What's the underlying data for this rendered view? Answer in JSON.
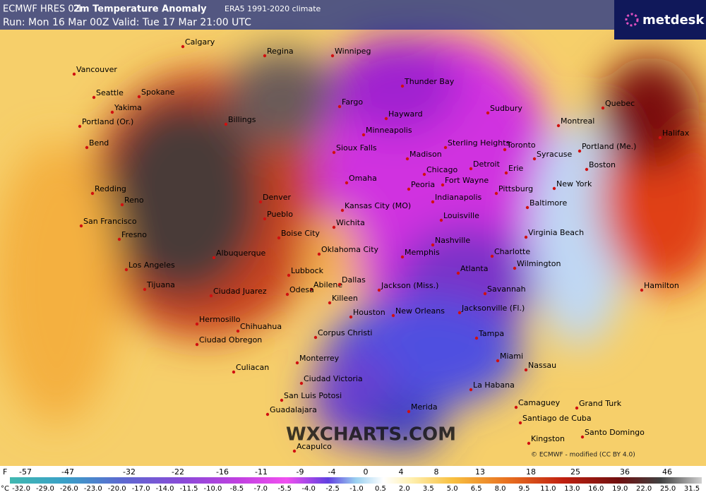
{
  "header": {
    "model": "ECMWF HRES 0.1",
    "title": "2m Temperature Anomaly",
    "climate": "ERA5 1991-2020 climate",
    "run": "Run: Mon 16 Mar 00Z Valid: Tue 17 Mar 21:00 UTC"
  },
  "logo": "metdesk",
  "watermark": "WXCHARTS.COM",
  "credit": "© ECMWF - modified (CC BY 4.0)",
  "cities": [
    "Calgary",
    "Regina",
    "Winnipeg",
    "Vancouver",
    "Seattle",
    "Spokane",
    "Yakima",
    "Billings",
    "Thunder Bay",
    "Fargo",
    "Hayward",
    "Sudbury",
    "Quebec",
    "Montreal",
    "Halifax",
    "Portland (Or.)",
    "Minneapolis",
    "Bend",
    "Sioux Falls",
    "Madison",
    "Sterling Heights",
    "Toronto",
    "Syracuse",
    "Portland (Me.)",
    "Boston",
    "Chicago",
    "Detroit",
    "Erie",
    "Omaha",
    "Peoria",
    "Fort Wayne",
    "New York",
    "Pittsburg",
    "Redding",
    "Reno",
    "Denver",
    "Indianapolis",
    "Kansas City (MO)",
    "Baltimore",
    "Pueblo",
    "San Francisco",
    "Fresno",
    "Boise City",
    "Wichita",
    "Louisville",
    "Virginia Beach",
    "Nashville",
    "Charlotte",
    "Albuquerque",
    "Oklahoma City",
    "Memphis",
    "Wilmington",
    "Los Angeles",
    "Lubbock",
    "Atlanta",
    "Abilene",
    "Odesa",
    "Ciudad Juarez",
    "Dallas",
    "Tijuana",
    "Jackson (Miss.)",
    "Savannah",
    "Killeen",
    "Houston",
    "New Orleans",
    "Jacksonville (Fl.)",
    "Hermosillo",
    "Chihuahua",
    "Corpus Christi",
    "Tampa",
    "Ciudad Obregon",
    "Monterrey",
    "Miami",
    "Nassau",
    "Hamilton",
    "Culiacan",
    "Ciudad Victoria",
    "La Habana",
    "San Luis Potosi",
    "Camaguey",
    "Grand Turk",
    "Guadalajara",
    "Merida",
    "Santiago de Cuba",
    "Santo Domingo",
    "Kingston",
    "Acapulco"
  ],
  "colorbar": {
    "f_unit": "F",
    "f_labels": [
      "-57",
      "-47",
      "-32",
      "-22",
      "-16",
      "-11",
      "-9",
      "-4",
      "0",
      "4",
      "8",
      "13",
      "18",
      "25",
      "36",
      "46"
    ],
    "c_unit": "°C",
    "c_labels": [
      "-32.0",
      "-29.0",
      "-26.0",
      "-23.0",
      "-20.0",
      "-17.0",
      "-14.0",
      "-11.5",
      "-10.0",
      "-8.5",
      "-7.0",
      "-5.5",
      "-4.0",
      "-2.5",
      "-1.0",
      "0.5",
      "2.0",
      "3.5",
      "5.0",
      "6.5",
      "8.0",
      "9.5",
      "11.0",
      "13.0",
      "16.0",
      "19.0",
      "22.0",
      "25.0",
      "31.5"
    ]
  }
}
